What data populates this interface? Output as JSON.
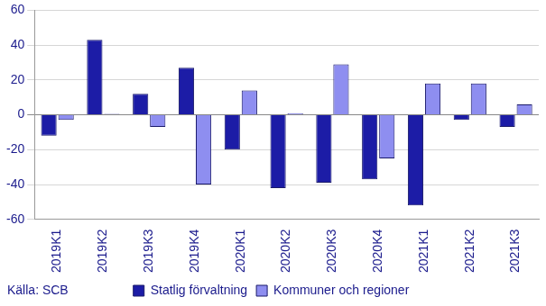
{
  "chart_data": {
    "type": "bar",
    "categories": [
      "2019K1",
      "2019K2",
      "2019K3",
      "2019K4",
      "2020K1",
      "2020K2",
      "2020K3",
      "2020K4",
      "2021K1",
      "2021K2",
      "2021K3"
    ],
    "series": [
      {
        "name": "Statlig förvaltning",
        "color": "#1c1ca6",
        "values": [
          -12,
          43,
          12,
          27,
          -20,
          -42,
          -39,
          -37,
          -52,
          -3,
          -7
        ]
      },
      {
        "name": "Kommuner och regioner",
        "color": "#8e8ef0",
        "values": [
          -3,
          0.5,
          -7,
          -40,
          14,
          1,
          29,
          -25,
          18,
          18,
          6
        ]
      }
    ],
    "ylim": [
      -60,
      60
    ],
    "yticks": [
      -60,
      -40,
      -20,
      0,
      20,
      40,
      60
    ],
    "grid": true,
    "legend": "bottom",
    "source": "Källa: SCB"
  }
}
